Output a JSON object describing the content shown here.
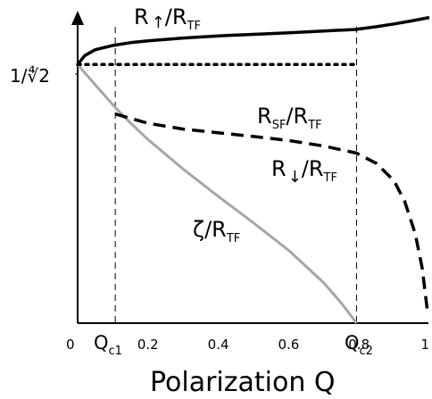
{
  "chart_data": {
    "type": "line",
    "xlabel": "Polarization Q",
    "xlim": [
      0,
      1
    ],
    "x_ticks": [
      "0",
      "0.2",
      "0.4",
      "0.6",
      "0.8",
      "1"
    ],
    "y_tick_label": "1/∜2",
    "y_tick_value": 0.8409,
    "annotations": {
      "qc1": {
        "main": "Q",
        "sub": "c1"
      },
      "qc2": {
        "main": "Q",
        "sub": "c2"
      }
    },
    "critical_x": {
      "qc1": 0.107,
      "qc2": 0.793
    },
    "series": [
      {
        "name": "R↑/R_TF",
        "label": {
          "main": "R",
          "arrow": "↑",
          "slash": "/R",
          "sub": "TF"
        },
        "style": "solid",
        "color": "#000000",
        "x": [
          0.0,
          0.02,
          0.05,
          0.1,
          0.15,
          0.2,
          0.3,
          0.4,
          0.5,
          0.6,
          0.7,
          0.79,
          0.85,
          0.9,
          0.95,
          1.0
        ],
        "y": [
          0.841,
          0.87,
          0.889,
          0.903,
          0.912,
          0.918,
          0.927,
          0.934,
          0.939,
          0.944,
          0.95,
          0.955,
          0.964,
          0.973,
          0.983,
          0.994
        ]
      },
      {
        "name": "R_SF/R_TF",
        "label": {
          "main": "R",
          "sub": "SF",
          "slash": "/R",
          "sub2": "TF"
        },
        "style": "dotted",
        "color": "#000000",
        "x": [
          0.0,
          0.793
        ],
        "y": [
          0.841,
          0.841
        ]
      },
      {
        "name": "R↓/R_TF",
        "label": {
          "main": "R",
          "arrow": "↓",
          "slash": "/R",
          "sub": "TF"
        },
        "style": "dashed",
        "color": "#000000",
        "x": [
          0.107,
          0.2,
          0.3,
          0.4,
          0.5,
          0.6,
          0.7,
          0.793,
          0.85,
          0.9,
          0.93,
          0.96,
          0.98,
          0.995
        ],
        "y": [
          0.68,
          0.65,
          0.631,
          0.619,
          0.607,
          0.594,
          0.576,
          0.553,
          0.519,
          0.462,
          0.396,
          0.291,
          0.178,
          0.035
        ]
      },
      {
        "name": "ζ/R_TF",
        "label": {
          "main": "ζ",
          "slash": "/R",
          "sub": "TF"
        },
        "style": "solid",
        "color": "#a6a6a6",
        "x": [
          0.0,
          0.05,
          0.107,
          0.15,
          0.2,
          0.3,
          0.4,
          0.5,
          0.6,
          0.7,
          0.75,
          0.78,
          0.793
        ],
        "y": [
          0.841,
          0.775,
          0.701,
          0.651,
          0.597,
          0.501,
          0.412,
          0.326,
          0.237,
          0.131,
          0.065,
          0.02,
          0.0
        ]
      }
    ]
  }
}
